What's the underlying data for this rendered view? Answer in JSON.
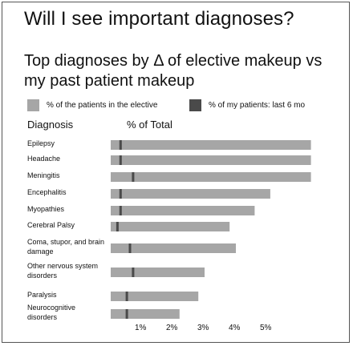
{
  "page": {
    "title": "Will I see important diagnoses?",
    "subtitle": "Top diagnoses by Δ of elective makeup vs my past patient makeup"
  },
  "legend": {
    "elective_label": "% of the patients in the elective",
    "past_label": "% of my patients: last 6 mo",
    "elective_color": "#a6a6a6",
    "past_color": "#4a4a4a"
  },
  "headers": {
    "diagnosis": "Diagnosis",
    "percent": "% of Total"
  },
  "chart_data": {
    "type": "bar",
    "orientation": "horizontal",
    "xlim": [
      0,
      6.3
    ],
    "x_ticks": [
      "1%",
      "2%",
      "3%",
      "4%",
      "5%"
    ],
    "categories": [
      "Epilepsy",
      "Headache",
      "Meningitis",
      "Encephalitis",
      "Myopathies",
      "Cerebral Palsy",
      "Coma, stupor, and brain damage",
      "Other nervous system disorders",
      "Paralysis",
      "Neurocognitive disorders"
    ],
    "series": [
      {
        "name": "% of the patients in the elective",
        "values": [
          6.4,
          6.4,
          6.5,
          5.1,
          4.6,
          3.8,
          4.0,
          3.0,
          2.8,
          2.2
        ]
      },
      {
        "name": "% of my patients: last 6 mo",
        "values": [
          0.2,
          0.2,
          0.6,
          0.2,
          0.2,
          0.1,
          0.5,
          0.6,
          0.4,
          0.4
        ]
      }
    ]
  }
}
